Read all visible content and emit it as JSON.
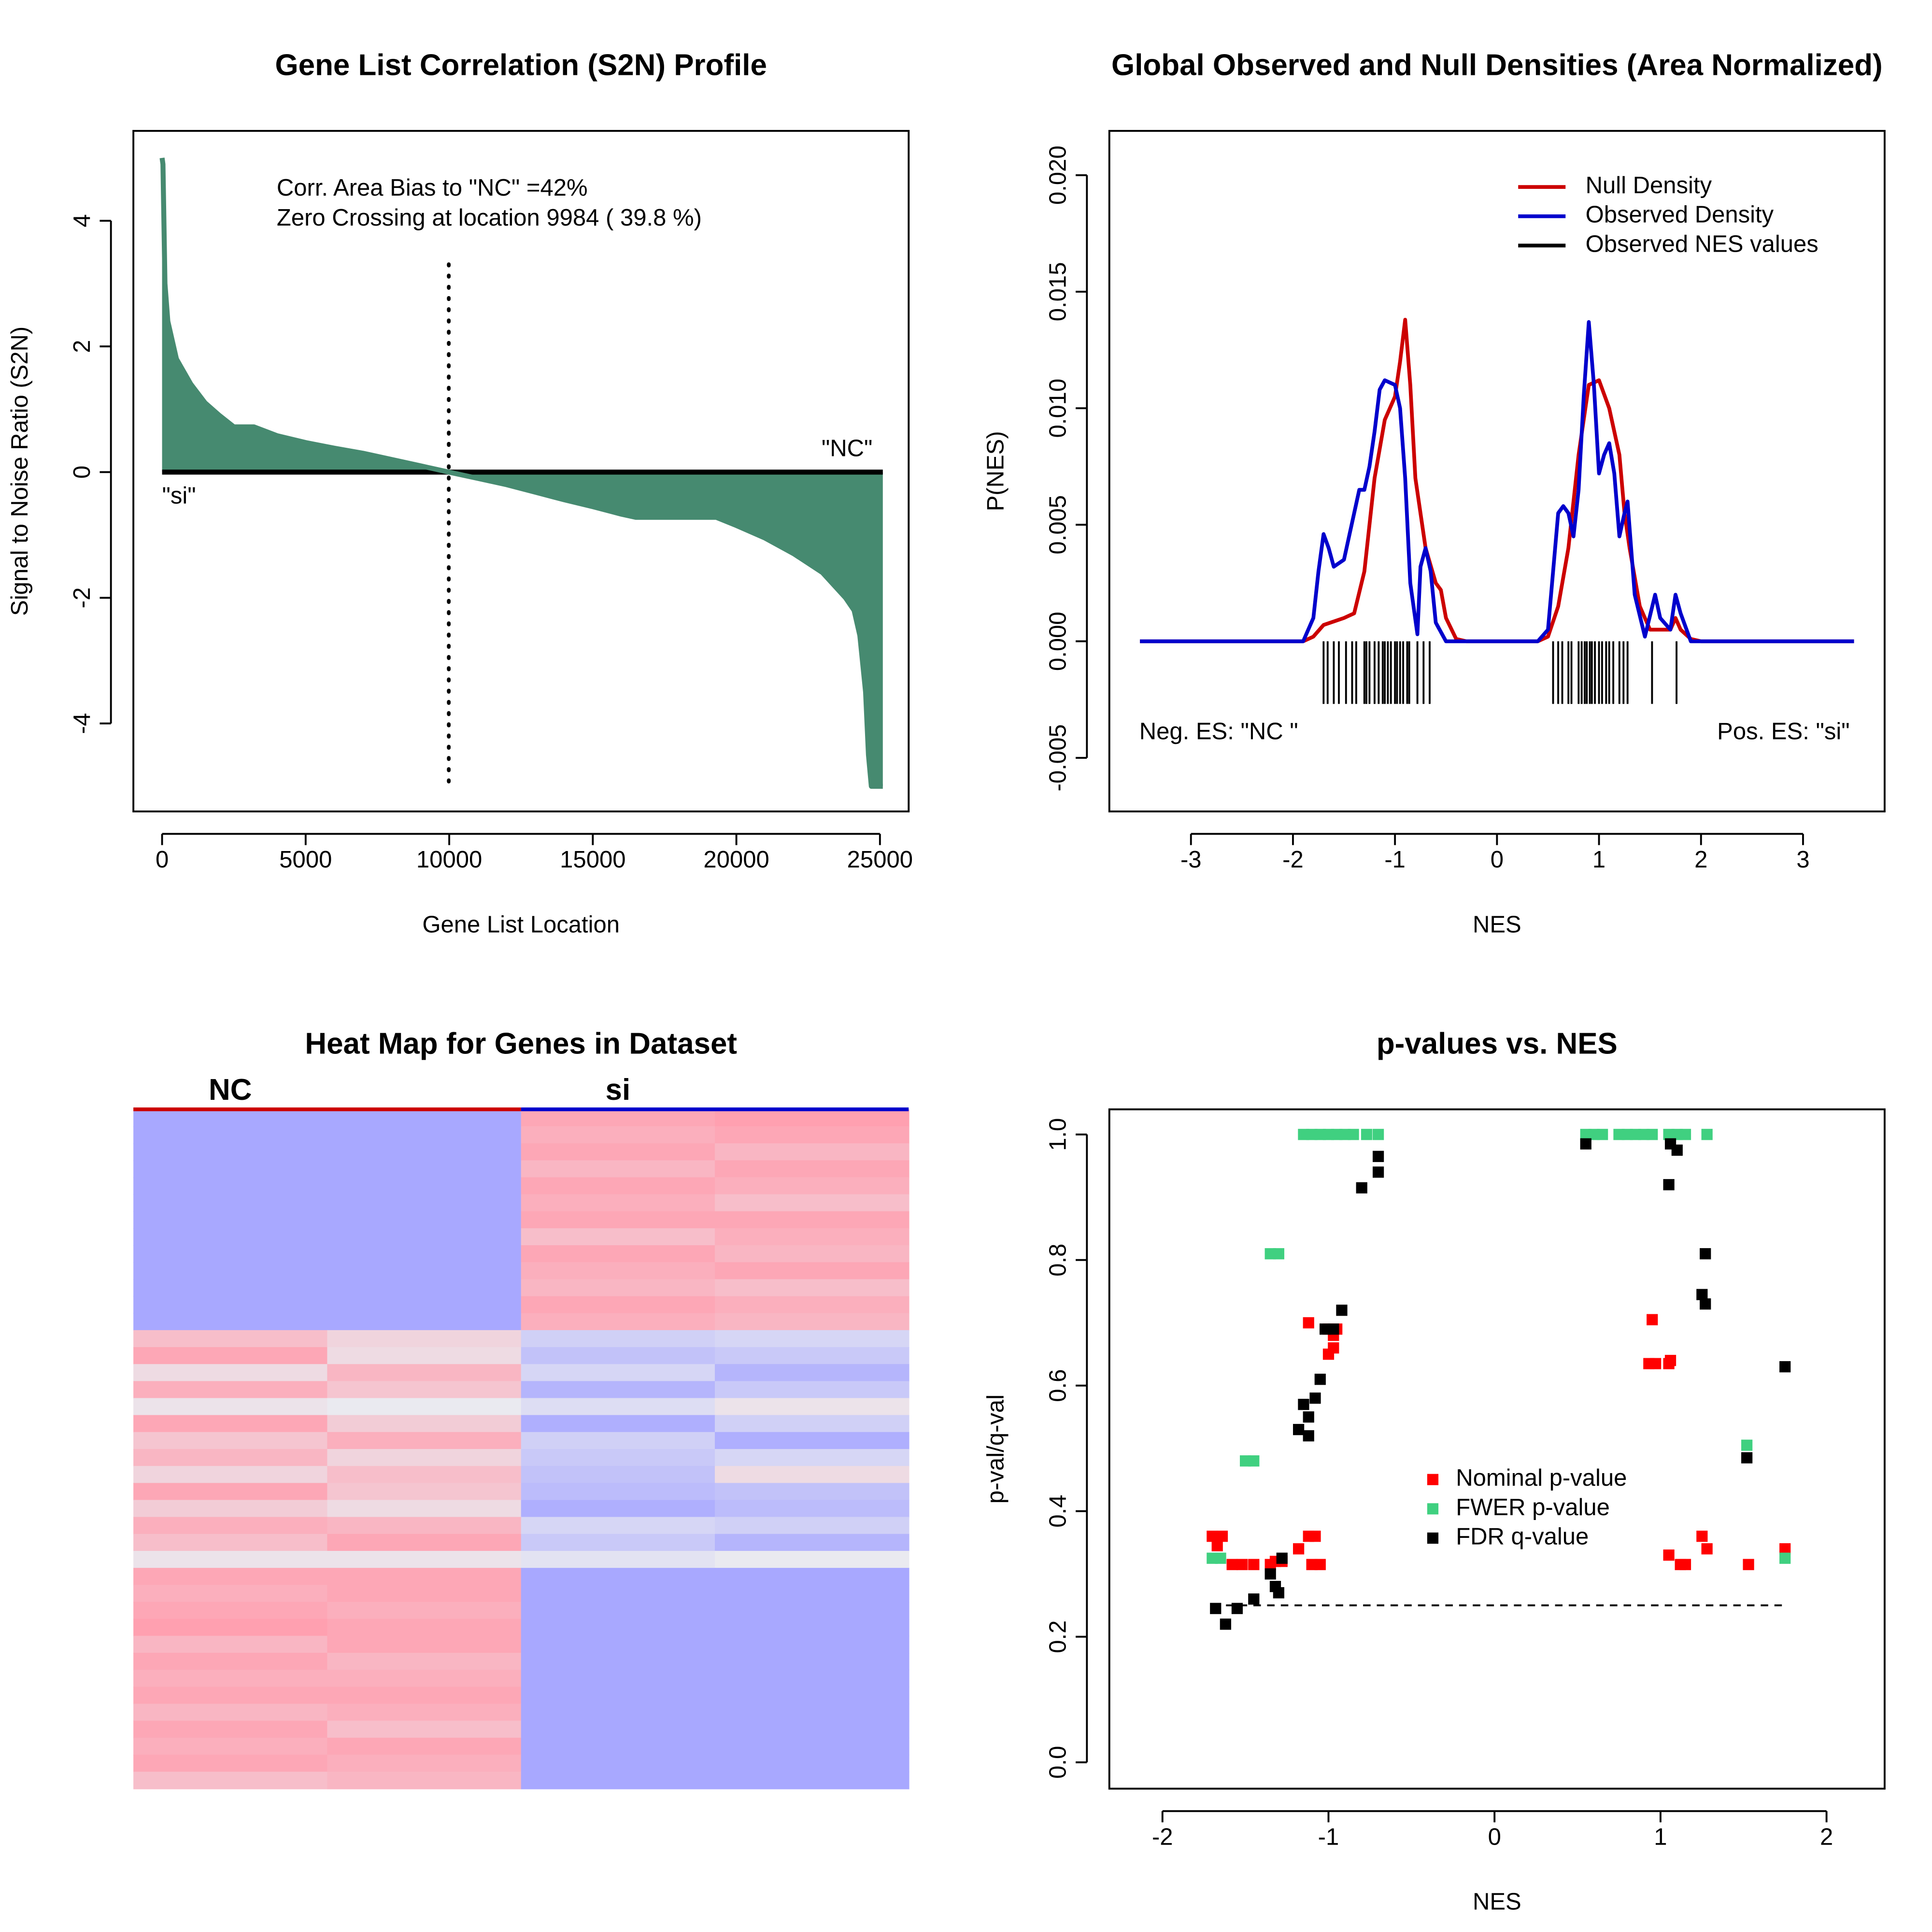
{
  "chart_data": [
    {
      "type": "area",
      "title": "Gene List Correlation (S2N) Profile",
      "x_label": "Gene List Location",
      "y_label": "Signal to Noise Ratio (S2N)",
      "annotations": [
        "Corr. Area Bias to \"NC\" =42%",
        "Zero Crossing at location  9984  ( 39.8  %)",
        "\"NC\"",
        "\"si\""
      ],
      "x": [
        0,
        30,
        100,
        200,
        500,
        1000,
        1500,
        2000,
        2500,
        3200,
        4000,
        5000,
        6000,
        7000,
        8000,
        9000,
        9984,
        11000,
        12000,
        13000,
        14000,
        15000,
        16000,
        16500,
        19300,
        20000,
        21000,
        22000,
        23000,
        23800,
        24100,
        24300,
        24500,
        24600,
        24700,
        25100
      ],
      "series": [
        {
          "name": "S2N",
          "color": "#468a70",
          "values": [
            5,
            4.9,
            3,
            2.4,
            1.8,
            1.4,
            1.1,
            0.9,
            0.72,
            0.72,
            0.58,
            0.47,
            0.38,
            0.3,
            0.2,
            0.1,
            0,
            -0.1,
            -0.2,
            -0.32,
            -0.44,
            -0.55,
            -0.67,
            -0.72,
            -0.72,
            -0.85,
            -1.05,
            -1.3,
            -1.6,
            -2.0,
            -2.2,
            -2.6,
            -3.5,
            -4.5,
            -5,
            -5
          ]
        }
      ],
      "vline": 9984,
      "xlim": [
        -1000,
        26000
      ],
      "ylim": [
        -5.4,
        5.43
      ],
      "xticks": [
        0,
        5000,
        10000,
        15000,
        20000,
        25000
      ],
      "yticks": [
        -4,
        -2,
        0,
        2,
        4
      ]
    },
    {
      "type": "line",
      "title": "Global Observed and Null Densities (Area Normalized)",
      "x_label": "NES",
      "y_label": "P(NES)",
      "annotations": [
        "Neg. ES: \"NC \"",
        "Pos. ES: \"si\""
      ],
      "series": [
        {
          "name": "Null Density",
          "color": "#cc0000",
          "x": [
            -3.5,
            -1.9,
            -1.8,
            -1.7,
            -1.5,
            -1.4,
            -1.3,
            -1.2,
            -1.1,
            -1.0,
            -0.95,
            -0.9,
            -0.85,
            -0.8,
            -0.75,
            -0.7,
            -0.6,
            -0.55,
            -0.5,
            -0.4,
            -0.3,
            0.4,
            0.5,
            0.6,
            0.7,
            0.8,
            0.9,
            1.0,
            1.1,
            1.2,
            1.25,
            1.3,
            1.4,
            1.5,
            1.7,
            1.75,
            1.8,
            1.9,
            2.0,
            3.5
          ],
          "values": [
            0,
            0,
            0.0002,
            0.0007,
            0.001,
            0.0012,
            0.003,
            0.007,
            0.0095,
            0.0105,
            0.012,
            0.0138,
            0.011,
            0.007,
            0.0055,
            0.004,
            0.0025,
            0.0022,
            0.001,
            0.0001,
            0,
            0,
            0.0002,
            0.0015,
            0.004,
            0.008,
            0.011,
            0.0112,
            0.01,
            0.008,
            0.0055,
            0.004,
            0.0015,
            0.0005,
            0.0005,
            0.001,
            0.0005,
            0.0001,
            0,
            0
          ]
        },
        {
          "name": "Observed Density",
          "color": "#0000cc",
          "x": [
            -3.5,
            -1.9,
            -1.8,
            -1.75,
            -1.7,
            -1.65,
            -1.6,
            -1.5,
            -1.45,
            -1.35,
            -1.3,
            -1.25,
            -1.2,
            -1.15,
            -1.1,
            -1.0,
            -0.95,
            -0.9,
            -0.85,
            -0.78,
            -0.75,
            -0.7,
            -0.65,
            -0.6,
            -0.5,
            0.4,
            0.5,
            0.55,
            0.6,
            0.65,
            0.7,
            0.75,
            0.8,
            0.85,
            0.9,
            0.95,
            1.0,
            1.05,
            1.1,
            1.15,
            1.2,
            1.25,
            1.28,
            1.35,
            1.45,
            1.55,
            1.6,
            1.7,
            1.75,
            1.8,
            1.9,
            3.5
          ],
          "values": [
            0,
            0,
            0.001,
            0.003,
            0.0046,
            0.004,
            0.0032,
            0.0035,
            0.0045,
            0.0065,
            0.0065,
            0.0075,
            0.009,
            0.0108,
            0.0112,
            0.011,
            0.01,
            0.007,
            0.0025,
            0.0003,
            0.0032,
            0.004,
            0.003,
            0.0008,
            0,
            0,
            0.0005,
            0.003,
            0.0055,
            0.0058,
            0.0055,
            0.0045,
            0.0065,
            0.0105,
            0.0137,
            0.011,
            0.0072,
            0.008,
            0.0085,
            0.0072,
            0.0045,
            0.0055,
            0.006,
            0.002,
            0.0002,
            0.002,
            0.001,
            0.0005,
            0.002,
            0.0012,
            0,
            0
          ]
        },
        {
          "name": "Observed NES values",
          "color": "#000000",
          "rug": true,
          "values": [
            -1.7,
            -1.66,
            -1.6,
            -1.55,
            -1.48,
            -1.42,
            -1.38,
            -1.3,
            -1.28,
            -1.25,
            -1.2,
            -1.16,
            -1.12,
            -1.1,
            -1.07,
            -1.04,
            -1.0,
            -0.98,
            -0.95,
            -0.92,
            -0.88,
            -0.86,
            -0.78,
            -0.72,
            -0.66,
            0.55,
            0.6,
            0.64,
            0.7,
            0.73,
            0.8,
            0.83,
            0.86,
            0.88,
            0.91,
            0.93,
            0.96,
            1.0,
            1.03,
            1.07,
            1.1,
            1.14,
            1.2,
            1.24,
            1.28,
            1.52,
            1.76
          ]
        }
      ],
      "xlim": [
        -3.8,
        3.8
      ],
      "ylim": [
        -0.0073,
        0.0219
      ],
      "xticks": [
        -3,
        -2,
        -1,
        0,
        1,
        2,
        3
      ],
      "yticks": [
        -0.005,
        {
          "value": 0,
          "label": "0.000"
        },
        0.005,
        {
          "value": 0.01,
          "label": "0.010"
        },
        0.015,
        {
          "value": 0.02,
          "label": "0.020"
        }
      ]
    },
    {
      "type": "heatmap",
      "title": "Heat Map for Genes in Dataset",
      "column_groups": [
        {
          "name": "NC",
          "color": "#cc0000"
        },
        {
          "name": "si",
          "color": "#0000cc"
        }
      ],
      "colormap": [
        "#a8a8ff",
        "#eaeaf0",
        "#ffa0b0"
      ],
      "values": [
        [
          -1,
          -1,
          0.9,
          1
        ],
        [
          -1,
          -1,
          0.8,
          0.9
        ],
        [
          -1,
          -1,
          0.9,
          0.7
        ],
        [
          -1,
          -1,
          0.7,
          0.9
        ],
        [
          -1,
          -1,
          0.9,
          0.8
        ],
        [
          -1,
          -1,
          0.8,
          0.6
        ],
        [
          -1,
          -1,
          0.9,
          0.9
        ],
        [
          -1,
          -1,
          0.6,
          0.8
        ],
        [
          -1,
          -1,
          0.9,
          0.7
        ],
        [
          -1,
          -1,
          0.8,
          0.9
        ],
        [
          -1,
          -1,
          0.7,
          0.6
        ],
        [
          -1,
          -1,
          0.9,
          0.8
        ],
        [
          -1,
          -1,
          0.8,
          0.7
        ],
        [
          0.6,
          0.3,
          -0.4,
          -0.3
        ],
        [
          0.9,
          0.2,
          -0.6,
          -0.5
        ],
        [
          0.2,
          0.7,
          -0.3,
          -0.8
        ],
        [
          0.8,
          0.5,
          -0.8,
          -0.5
        ],
        [
          0.1,
          0,
          -0.2,
          0.1
        ],
        [
          0.9,
          0.4,
          -0.9,
          -0.4
        ],
        [
          0.5,
          0.8,
          -0.4,
          -0.9
        ],
        [
          0.7,
          0.3,
          -0.5,
          -0.3
        ],
        [
          0.3,
          0.6,
          -0.6,
          0.2
        ],
        [
          0.9,
          0.5,
          -0.7,
          -0.6
        ],
        [
          0.4,
          0.2,
          -0.9,
          -0.7
        ],
        [
          0.8,
          0.7,
          -0.3,
          -0.4
        ],
        [
          0.6,
          0.9,
          -0.5,
          -0.8
        ],
        [
          0.1,
          0.1,
          -0.1,
          0
        ],
        [
          0.9,
          0.9,
          -1,
          -1
        ],
        [
          0.8,
          0.9,
          -1,
          -1
        ],
        [
          0.9,
          0.8,
          -1,
          -1
        ],
        [
          1,
          0.9,
          -1,
          -1
        ],
        [
          0.7,
          0.9,
          -1,
          -1
        ],
        [
          0.9,
          0.7,
          -1,
          -1
        ],
        [
          0.8,
          0.8,
          -1,
          -1
        ],
        [
          0.9,
          0.9,
          -1,
          -1
        ],
        [
          0.7,
          0.8,
          -1,
          -1
        ],
        [
          0.9,
          0.6,
          -1,
          -1
        ],
        [
          0.8,
          0.9,
          -1,
          -1
        ],
        [
          0.9,
          0.8,
          -1,
          -1
        ],
        [
          0.6,
          0.7,
          -1,
          -1
        ]
      ]
    },
    {
      "type": "scatter",
      "title": "p-values vs. NES",
      "x_label": "NES",
      "y_label": "p-val/q-val",
      "series": [
        {
          "name": "Nominal p-value",
          "color": "#ff0000",
          "x": [
            -1.7,
            -1.64,
            -1.67,
            -1.58,
            -1.52,
            -1.45,
            -1.35,
            -1.32,
            -1.28,
            -1.18,
            -1.12,
            -1.08,
            -1.1,
            -1.05,
            -1.12,
            -1.0,
            -0.97,
            -0.95,
            -0.97,
            -1.0,
            0.93,
            0.95,
            0.97,
            1.05,
            1.06,
            1.05,
            1.12,
            1.15,
            1.25,
            1.28,
            1.53,
            1.75
          ],
          "values": [
            0.36,
            0.36,
            0.345,
            0.315,
            0.315,
            0.315,
            0.315,
            0.32,
            0.32,
            0.34,
            0.36,
            0.36,
            0.315,
            0.315,
            0.7,
            0.69,
            0.68,
            0.69,
            0.66,
            0.65,
            0.635,
            0.705,
            0.635,
            0.635,
            0.64,
            0.33,
            0.315,
            0.315,
            0.36,
            0.34,
            0.315,
            0.34
          ]
        },
        {
          "name": "FWER p-value",
          "color": "#40d080",
          "x": [
            -1.15,
            -1.1,
            -1.05,
            -1.0,
            -0.95,
            -0.9,
            -0.85,
            -0.77,
            -0.7,
            -1.35,
            -1.3,
            -1.5,
            -1.45,
            -1.7,
            -1.65,
            0.55,
            0.6,
            0.65,
            0.75,
            0.8,
            0.85,
            0.9,
            0.95,
            1.05,
            1.1,
            1.15,
            1.28,
            1.52,
            1.75
          ],
          "values": [
            1,
            1,
            1,
            1,
            1,
            1,
            1,
            1,
            1,
            0.81,
            0.81,
            0.48,
            0.48,
            0.325,
            0.325,
            1,
            1,
            1,
            1,
            1,
            1,
            1,
            1,
            1,
            1,
            1,
            1,
            0.505,
            0.325
          ]
        },
        {
          "name": "FDR q-value",
          "color": "#000000",
          "x": [
            -1.68,
            -1.62,
            -1.55,
            -1.45,
            -1.35,
            -1.32,
            -1.3,
            -1.28,
            -1.18,
            -1.15,
            -1.12,
            -1.12,
            -1.08,
            -1.05,
            -1.02,
            -0.97,
            -0.92,
            -0.8,
            -0.7,
            -0.7,
            0.55,
            1.06,
            1.1,
            1.05,
            1.27,
            1.25,
            1.27,
            1.52,
            1.75
          ],
          "values": [
            0.245,
            0.22,
            0.245,
            0.26,
            0.3,
            0.28,
            0.27,
            0.325,
            0.53,
            0.57,
            0.55,
            0.52,
            0.58,
            0.61,
            0.69,
            0.69,
            0.72,
            0.915,
            0.965,
            0.94,
            0.985,
            0.985,
            0.975,
            0.92,
            0.81,
            0.745,
            0.73,
            0.485,
            0.63
          ]
        }
      ],
      "reference_line": {
        "y": 0.25,
        "x": [
          -1.7,
          1.75
        ]
      },
      "xlim": [
        -2.32,
        2.35
      ],
      "ylim": [
        -0.042,
        1.04
      ],
      "xticks": [
        -2,
        -1,
        0,
        1,
        2
      ],
      "yticks": [
        {
          "value": 0,
          "label": "0.0"
        },
        0.2,
        0.4,
        0.6,
        0.8,
        {
          "value": 1,
          "label": "1.0"
        }
      ]
    }
  ]
}
